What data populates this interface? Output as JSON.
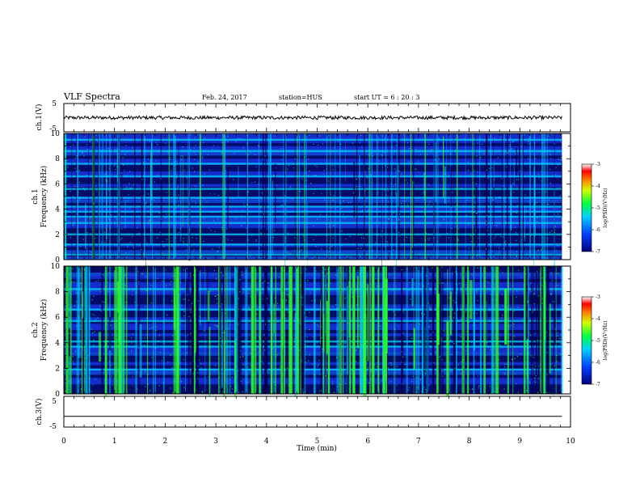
{
  "header": {
    "title": "VLF Spectra",
    "date": "Feb. 24, 2017",
    "station": "station=HUS",
    "start_ut": "start  UT =   6 : 20 : 3"
  },
  "chart_data": [
    {
      "type": "line",
      "panel": "ch1-waveform",
      "ylabel": "ch.1(V)",
      "ylim": [
        -5,
        5
      ],
      "yticks": [
        "5",
        "-5"
      ],
      "description_values": {
        "level": 0.0,
        "noise_amplitude": 0.6
      },
      "x_extent_min": [
        0,
        9.83
      ]
    },
    {
      "type": "heatmap",
      "panel": "ch1-spectrogram",
      "ylabel_line1": "ch.1",
      "ylabel_line2": "Frequency (kHz)",
      "ylim": [
        0,
        10
      ],
      "yticks": [
        "0",
        "2",
        "4",
        "6",
        "8",
        "10"
      ],
      "x_extent_min": [
        0,
        9.83
      ],
      "colorbar": {
        "label": "log(PSD)(V²/Hz)",
        "range": [
          -7,
          -3
        ],
        "ticks": [
          "-3",
          "-4",
          "-5",
          "-6",
          "-7"
        ]
      },
      "bright_bands_khz": [
        0.4,
        1.2,
        2.0,
        2.9,
        3.4,
        3.8,
        4.2,
        4.9,
        5.6,
        6.6,
        7.6,
        8.6,
        9.5
      ]
    },
    {
      "type": "heatmap",
      "panel": "ch2-spectrogram",
      "ylabel_line1": "ch.2",
      "ylabel_line2": "Frequency (kHz)",
      "ylim": [
        0,
        10
      ],
      "yticks": [
        "0",
        "2",
        "4",
        "6",
        "8",
        "10"
      ],
      "x_extent_min": [
        0,
        9.83
      ],
      "colorbar": {
        "label": "log(PSD)(V²/Hz)",
        "range": [
          -7,
          -3
        ],
        "ticks": [
          "-3",
          "-4",
          "-5",
          "-6",
          "-7"
        ]
      },
      "bright_bands_khz": [
        1.9,
        3.7,
        4.1,
        5.7,
        6.6,
        8.2
      ]
    },
    {
      "type": "line",
      "panel": "ch3-waveform",
      "ylabel": "ch.3(V)",
      "ylim": [
        -5,
        5
      ],
      "yticks": [
        "5",
        "-5"
      ],
      "description_values": {
        "level": -1.5,
        "noise_amplitude": 0.0
      },
      "x_extent_min": [
        0,
        9.83
      ]
    }
  ],
  "xaxis": {
    "label": "Time  (min)",
    "range": [
      0,
      10
    ],
    "ticks": [
      "0",
      "1",
      "2",
      "3",
      "4",
      "5",
      "6",
      "7",
      "8",
      "9",
      "10"
    ]
  },
  "colors": {
    "dark": "#00004a",
    "blue": "#1e3cff",
    "cyan": "#00d2ff",
    "green": "#2aff2a"
  }
}
